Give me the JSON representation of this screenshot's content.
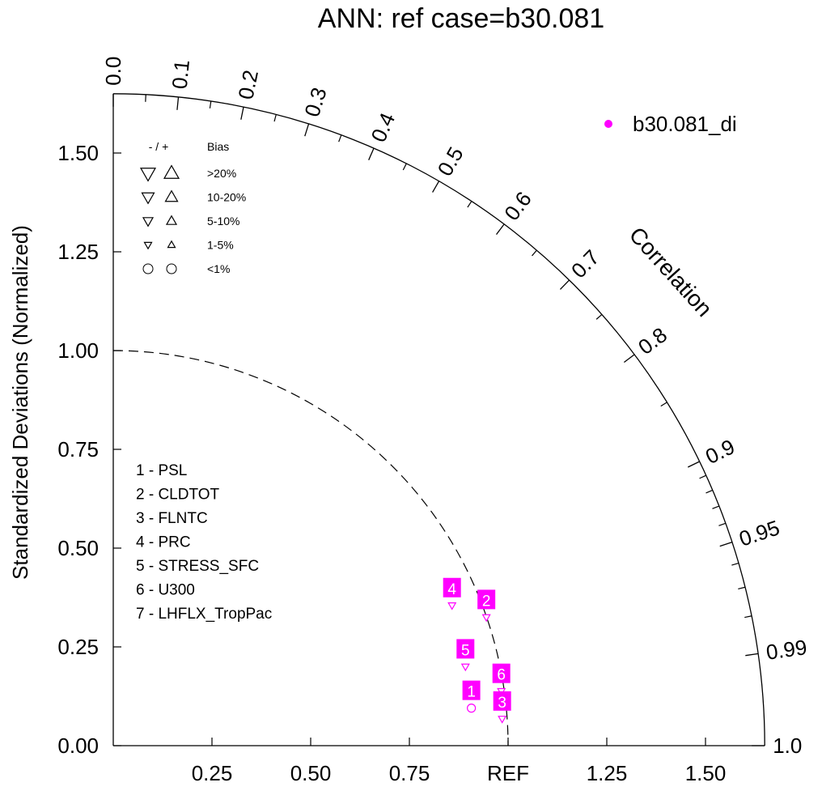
{
  "chart_data": {
    "type": "taylor",
    "title": "ANN: ref case=b30.081",
    "ylabel": "Standardized Deviations (Normalized)",
    "correlation_label": "Correlation",
    "xlim": [
      0,
      1.65
    ],
    "ylim": [
      0,
      1.65
    ],
    "x_ticks": [
      0.25,
      0.5,
      0.75,
      1.25,
      1.5
    ],
    "x_tick_labels": [
      "0.25",
      "0.50",
      "0.75",
      "1.25",
      "1.50"
    ],
    "ref_value": 1.0,
    "ref_label": "REF",
    "y_ticks": [
      0,
      0.25,
      0.5,
      0.75,
      1.0,
      1.25,
      1.5
    ],
    "y_tick_labels": [
      "0.00",
      "0.25",
      "0.50",
      "0.75",
      "1.00",
      "1.25",
      "1.50"
    ],
    "correlation_labels": [
      {
        "r": 0.0,
        "text": "0.0"
      },
      {
        "r": 0.1,
        "text": "0.1"
      },
      {
        "r": 0.2,
        "text": "0.2"
      },
      {
        "r": 0.3,
        "text": "0.3"
      },
      {
        "r": 0.4,
        "text": "0.4"
      },
      {
        "r": 0.5,
        "text": "0.5"
      },
      {
        "r": 0.6,
        "text": "0.6"
      },
      {
        "r": 0.7,
        "text": "0.7"
      },
      {
        "r": 0.8,
        "text": "0.8"
      },
      {
        "r": 0.9,
        "text": "0.9"
      },
      {
        "r": 0.95,
        "text": "0.95"
      },
      {
        "r": 0.99,
        "text": "0.99"
      },
      {
        "r": 1.0,
        "text": "1.0"
      }
    ],
    "correlation_minor_ticks": [
      0.05,
      0.15,
      0.25,
      0.35,
      0.45,
      0.55,
      0.65,
      0.75,
      0.85,
      0.91,
      0.92,
      0.93,
      0.94,
      0.96,
      0.97,
      0.98
    ],
    "series": [
      {
        "name": "b30.081_di",
        "color": "#ff00ff",
        "points": [
          {
            "id": "1",
            "label": "1",
            "x": 0.907,
            "y": 0.095,
            "bias": "<1%",
            "sign": "none"
          },
          {
            "id": "2",
            "label": "2",
            "x": 0.945,
            "y": 0.325,
            "bias": "1-5%",
            "sign": "-"
          },
          {
            "id": "3",
            "label": "3",
            "x": 0.985,
            "y": 0.068,
            "bias": "1-5%",
            "sign": "-"
          },
          {
            "id": "4",
            "label": "4",
            "x": 0.858,
            "y": 0.355,
            "bias": "1-5%",
            "sign": "-"
          },
          {
            "id": "5",
            "label": "5",
            "x": 0.892,
            "y": 0.2,
            "bias": "1-5%",
            "sign": "-"
          },
          {
            "id": "6",
            "label": "6",
            "x": 0.983,
            "y": 0.138,
            "bias": "1-5%",
            "sign": "-"
          }
        ]
      }
    ],
    "variables": [
      "1 - PSL",
      "2 - CLDTOT",
      "3 - FLNTC",
      "4 - PRC",
      "5 - STRESS_SFC",
      "6 - U300",
      "7 - LHFLX_TropPac"
    ],
    "bias_legend": {
      "header_sign": "- / +",
      "header_bias": "Bias",
      "rows": [
        {
          "label": ">20%",
          "size": "xl"
        },
        {
          "label": "10-20%",
          "size": "l"
        },
        {
          "label": "5-10%",
          "size": "m"
        },
        {
          "label": "1-5%",
          "size": "s"
        },
        {
          "label": "<1%",
          "size": "circle"
        }
      ]
    },
    "legend": {
      "position": "top-right",
      "entries": [
        {
          "name": "b30.081_di",
          "color": "#ff00ff"
        }
      ]
    }
  }
}
